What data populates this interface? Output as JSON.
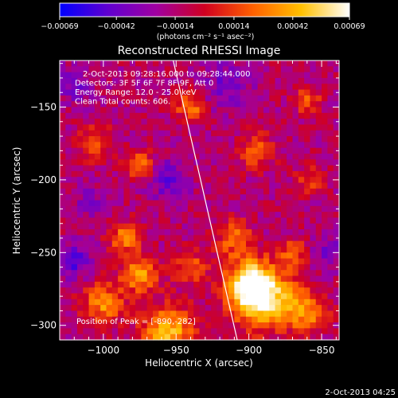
{
  "chart_data": {
    "type": "heatmap",
    "title": "Reconstructed RHESSI Image",
    "xlabel": "Heliocentric X (arcsec)",
    "ylabel": "Heliocentric Y (arcsec)",
    "xlim": [
      -1030,
      -838
    ],
    "ylim": [
      -310,
      -118
    ],
    "x_ticks": [
      -1000,
      -950,
      -900,
      -850
    ],
    "y_ticks": [
      -300,
      -250,
      -200,
      -150
    ],
    "x_tick_labels": [
      "−1000",
      "−950",
      "−900",
      "−850"
    ],
    "y_tick_labels": [
      "−300",
      "−250",
      "−200",
      "−150"
    ],
    "colorbar": {
      "min": -0.00069,
      "max": 0.00069,
      "ticks": [
        -0.00069,
        -0.00042,
        -0.00014,
        0.00014,
        0.00042,
        0.00069
      ],
      "tick_labels": [
        "−0.00069",
        "−0.00042",
        "−0.00014",
        "0.00014",
        "0.00042",
        "0.00069"
      ],
      "unit_label": "(photons cm⁻² s⁻¹ asec⁻²)",
      "stops": [
        "#0000ff",
        "#6000d0",
        "#a000a0",
        "#d00020",
        "#ff6000",
        "#ffc000",
        "#ffffff"
      ]
    },
    "annotations": [
      "2-Oct-2013 09:28:16.000 to 09:28:44.000",
      "Detectors: 3F 5F 6F 7F 8F 9F, Att 0",
      "Energy Range: 12.0 - 25.0 keV",
      "Clean    Total counts: 606."
    ],
    "peak_label": "Position of Peak = [-890,-282]",
    "limb_line": [
      [
        -952,
        -118
      ],
      [
        -908,
        -310
      ]
    ],
    "hotspots": [
      {
        "x": -940,
        "y": -150,
        "amp": 0.55,
        "r": 10
      },
      {
        "x": -895,
        "y": -180,
        "amp": 0.45,
        "r": 12
      },
      {
        "x": -860,
        "y": -145,
        "amp": 0.45,
        "r": 9
      },
      {
        "x": -858,
        "y": -200,
        "amp": 0.35,
        "r": 10
      },
      {
        "x": -1005,
        "y": -175,
        "amp": 0.45,
        "r": 11
      },
      {
        "x": -975,
        "y": -190,
        "amp": 0.5,
        "r": 10
      },
      {
        "x": -985,
        "y": -240,
        "amp": 0.55,
        "r": 11
      },
      {
        "x": -975,
        "y": -265,
        "amp": 0.7,
        "r": 12
      },
      {
        "x": -1000,
        "y": -285,
        "amp": 0.6,
        "r": 14
      },
      {
        "x": -940,
        "y": -260,
        "amp": 0.4,
        "r": 12
      },
      {
        "x": -910,
        "y": -240,
        "amp": 0.5,
        "r": 12
      },
      {
        "x": -900,
        "y": -270,
        "amp": 0.8,
        "r": 16
      },
      {
        "x": -890,
        "y": -282,
        "amp": 1.0,
        "r": 20
      },
      {
        "x": -955,
        "y": -305,
        "amp": 0.75,
        "r": 18
      },
      {
        "x": -860,
        "y": -290,
        "amp": 0.6,
        "r": 14
      },
      {
        "x": -870,
        "y": -250,
        "amp": 0.45,
        "r": 10
      }
    ],
    "coldspots": [
      {
        "x": -1020,
        "y": -255,
        "amp": 0.55,
        "r": 12
      },
      {
        "x": -955,
        "y": -200,
        "amp": 0.45,
        "r": 14
      },
      {
        "x": -915,
        "y": -135,
        "amp": 0.4,
        "r": 16
      },
      {
        "x": -1020,
        "y": -135,
        "amp": 0.35,
        "r": 12
      },
      {
        "x": -845,
        "y": -250,
        "amp": 0.35,
        "r": 12
      },
      {
        "x": -1010,
        "y": -215,
        "amp": 0.3,
        "r": 10
      }
    ]
  },
  "footer": {
    "timestamp": "2-Oct-2013 04:25"
  }
}
